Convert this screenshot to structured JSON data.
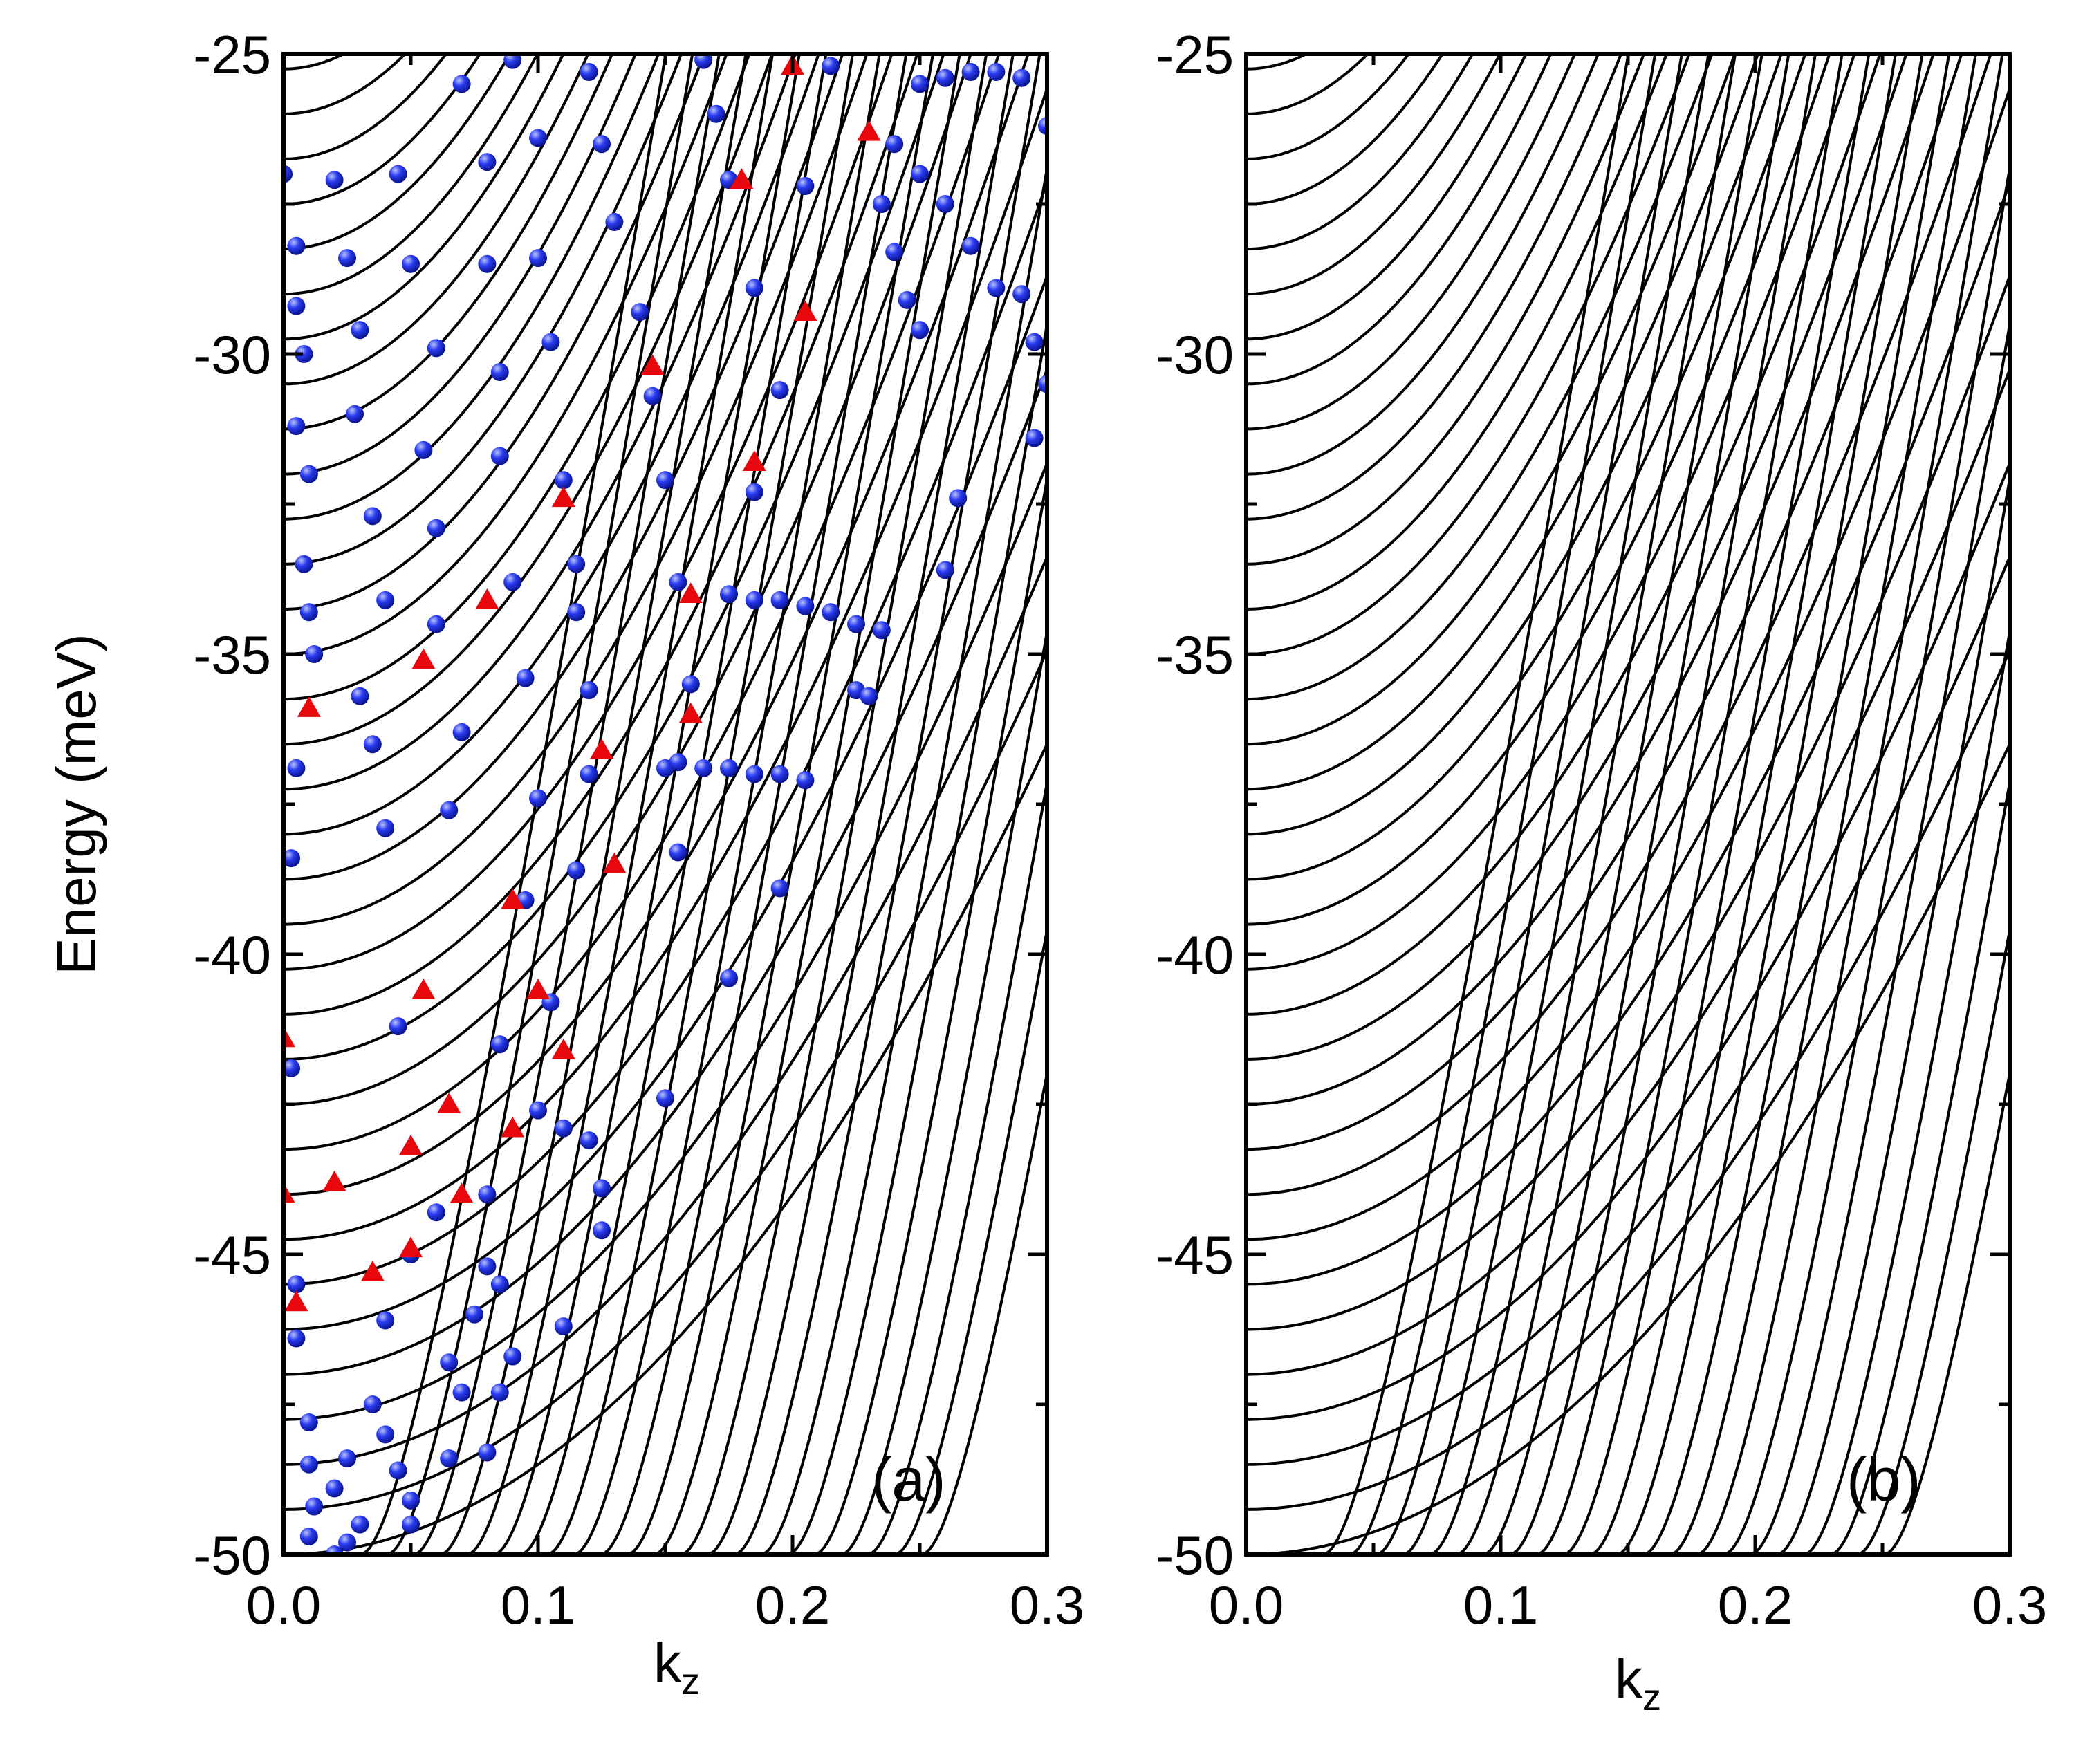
{
  "chart_data": [
    {
      "type": "line",
      "panel_label": "(a)",
      "xlabel": "k",
      "xlabel_sub": "z",
      "ylabel": "Energy (meV)",
      "xlim": [
        0.0,
        0.3
      ],
      "ylim": [
        -50,
        -25
      ],
      "xticks": [
        0.0,
        0.1,
        0.2,
        0.3
      ],
      "xtick_labels": [
        "0.0",
        "0.1",
        "0.2",
        "0.3"
      ],
      "yticks": [
        -25,
        -30,
        -35,
        -40,
        -45,
        -50
      ],
      "ytick_labels": [
        "-25",
        "-30",
        "-35",
        "-40",
        "-45",
        "-50"
      ],
      "legend": "none",
      "grid": false,
      "series": [
        {
          "name": "subbands",
          "description": "dispersion curves E_n(k_z); lowest subband minimum about -50 meV"
        },
        {
          "name": "states (blue spheres)",
          "description": "numerical eigenstates"
        },
        {
          "name": "states (red triangles)",
          "description": "selected eigenstates"
        }
      ],
      "blue_points": [
        [
          0.0,
          -27.0
        ],
        [
          0.005,
          -28.2
        ],
        [
          0.005,
          -29.2
        ],
        [
          0.008,
          -30.0
        ],
        [
          0.005,
          -31.2
        ],
        [
          0.01,
          -32.0
        ],
        [
          0.008,
          -33.5
        ],
        [
          0.01,
          -34.3
        ],
        [
          0.012,
          -35.0
        ],
        [
          0.005,
          -36.9
        ],
        [
          0.003,
          -38.4
        ],
        [
          0.003,
          -41.9
        ],
        [
          0.005,
          -45.5
        ],
        [
          0.005,
          -46.4
        ],
        [
          0.01,
          -47.8
        ],
        [
          0.01,
          -48.5
        ],
        [
          0.012,
          -49.2
        ],
        [
          0.01,
          -49.7
        ],
        [
          0.02,
          -50.0
        ],
        [
          0.025,
          -49.8
        ],
        [
          0.03,
          -49.5
        ],
        [
          0.02,
          -48.9
        ],
        [
          0.025,
          -48.4
        ],
        [
          0.02,
          -27.1
        ],
        [
          0.025,
          -28.4
        ],
        [
          0.03,
          -29.6
        ],
        [
          0.028,
          -31.0
        ],
        [
          0.035,
          -32.7
        ],
        [
          0.04,
          -34.1
        ],
        [
          0.03,
          -35.7
        ],
        [
          0.035,
          -36.5
        ],
        [
          0.04,
          -37.9
        ],
        [
          0.045,
          -41.2
        ],
        [
          0.05,
          -45.0
        ],
        [
          0.04,
          -46.1
        ],
        [
          0.035,
          -47.5
        ],
        [
          0.04,
          -48.0
        ],
        [
          0.045,
          -48.6
        ],
        [
          0.05,
          -49.1
        ],
        [
          0.05,
          -49.5
        ],
        [
          0.045,
          -27.0
        ],
        [
          0.05,
          -28.5
        ],
        [
          0.06,
          -29.9
        ],
        [
          0.055,
          -31.6
        ],
        [
          0.06,
          -32.9
        ],
        [
          0.06,
          -34.5
        ],
        [
          0.07,
          -36.3
        ],
        [
          0.065,
          -37.6
        ],
        [
          0.06,
          -44.3
        ],
        [
          0.065,
          -46.8
        ],
        [
          0.07,
          -47.3
        ],
        [
          0.065,
          -48.4
        ],
        [
          0.07,
          -25.5
        ],
        [
          0.08,
          -26.8
        ],
        [
          0.08,
          -28.5
        ],
        [
          0.085,
          -30.3
        ],
        [
          0.085,
          -31.7
        ],
        [
          0.09,
          -33.8
        ],
        [
          0.095,
          -35.4
        ],
        [
          0.1,
          -37.4
        ],
        [
          0.095,
          -39.1
        ],
        [
          0.085,
          -41.5
        ],
        [
          0.08,
          -44.0
        ],
        [
          0.085,
          -45.5
        ],
        [
          0.09,
          -46.7
        ],
        [
          0.085,
          -47.3
        ],
        [
          0.08,
          -48.3
        ],
        [
          0.075,
          -46.0
        ],
        [
          0.08,
          -45.2
        ],
        [
          0.09,
          -25.1
        ],
        [
          0.1,
          -26.4
        ],
        [
          0.1,
          -28.4
        ],
        [
          0.105,
          -29.8
        ],
        [
          0.11,
          -32.1
        ],
        [
          0.115,
          -33.5
        ],
        [
          0.115,
          -34.3
        ],
        [
          0.12,
          -35.6
        ],
        [
          0.12,
          -37.0
        ],
        [
          0.115,
          -38.6
        ],
        [
          0.105,
          -40.8
        ],
        [
          0.1,
          -42.6
        ],
        [
          0.11,
          -42.9
        ],
        [
          0.12,
          -43.1
        ],
        [
          0.125,
          -43.9
        ],
        [
          0.125,
          -44.6
        ],
        [
          0.11,
          -46.2
        ],
        [
          0.12,
          -25.3
        ],
        [
          0.125,
          -26.5
        ],
        [
          0.13,
          -27.8
        ],
        [
          0.14,
          -29.3
        ],
        [
          0.145,
          -30.7
        ],
        [
          0.15,
          -32.1
        ],
        [
          0.155,
          -33.8
        ],
        [
          0.15,
          -36.9
        ],
        [
          0.155,
          -38.3
        ],
        [
          0.15,
          -42.4
        ],
        [
          0.16,
          -35.5
        ],
        [
          0.155,
          -36.8
        ],
        [
          0.165,
          -36.9
        ],
        [
          0.175,
          -36.9
        ],
        [
          0.185,
          -37.0
        ],
        [
          0.195,
          -37.0
        ],
        [
          0.205,
          -37.1
        ],
        [
          0.175,
          -34.0
        ],
        [
          0.185,
          -34.1
        ],
        [
          0.195,
          -34.1
        ],
        [
          0.205,
          -34.2
        ],
        [
          0.215,
          -34.3
        ],
        [
          0.225,
          -34.5
        ],
        [
          0.235,
          -34.6
        ],
        [
          0.225,
          -35.6
        ],
        [
          0.23,
          -35.7
        ],
        [
          0.195,
          -38.9
        ],
        [
          0.175,
          -40.4
        ],
        [
          0.165,
          -25.1
        ],
        [
          0.17,
          -26.0
        ],
        [
          0.175,
          -27.1
        ],
        [
          0.185,
          -28.9
        ],
        [
          0.195,
          -30.6
        ],
        [
          0.185,
          -32.3
        ],
        [
          0.205,
          -27.2
        ],
        [
          0.215,
          -25.2
        ],
        [
          0.235,
          -27.5
        ],
        [
          0.24,
          -28.3
        ],
        [
          0.245,
          -29.1
        ],
        [
          0.25,
          -29.6
        ],
        [
          0.24,
          -26.5
        ],
        [
          0.25,
          -27.0
        ],
        [
          0.26,
          -27.5
        ],
        [
          0.27,
          -28.2
        ],
        [
          0.28,
          -28.9
        ],
        [
          0.25,
          -25.5
        ],
        [
          0.26,
          -25.4
        ],
        [
          0.27,
          -25.3
        ],
        [
          0.28,
          -25.3
        ],
        [
          0.29,
          -25.4
        ],
        [
          0.3,
          -26.2
        ],
        [
          0.29,
          -29.0
        ],
        [
          0.295,
          -29.8
        ],
        [
          0.3,
          -30.5
        ],
        [
          0.295,
          -31.4
        ],
        [
          0.26,
          -33.6
        ],
        [
          0.265,
          -32.4
        ]
      ],
      "red_points": [
        [
          0.2,
          -25.2
        ],
        [
          0.23,
          -26.3
        ],
        [
          0.18,
          -27.1
        ],
        [
          0.205,
          -29.3
        ],
        [
          0.145,
          -30.2
        ],
        [
          0.185,
          -31.8
        ],
        [
          0.11,
          -32.4
        ],
        [
          0.08,
          -34.1
        ],
        [
          0.055,
          -35.1
        ],
        [
          0.01,
          -35.9
        ],
        [
          0.16,
          -34.0
        ],
        [
          0.16,
          -36.0
        ],
        [
          0.125,
          -36.6
        ],
        [
          0.13,
          -38.5
        ],
        [
          0.09,
          -39.1
        ],
        [
          0.055,
          -40.6
        ],
        [
          0.1,
          -40.6
        ],
        [
          0.11,
          -41.6
        ],
        [
          0.0,
          -41.4
        ],
        [
          0.065,
          -42.5
        ],
        [
          0.05,
          -43.2
        ],
        [
          0.09,
          -42.9
        ],
        [
          0.0,
          -44.0
        ],
        [
          0.02,
          -43.8
        ],
        [
          0.07,
          -44.0
        ],
        [
          0.05,
          -44.9
        ],
        [
          0.035,
          -45.3
        ],
        [
          0.005,
          -45.8
        ]
      ]
    },
    {
      "type": "line",
      "panel_label": "(b)",
      "xlabel": "k",
      "xlabel_sub": "z",
      "ylabel": "",
      "xlim": [
        0.0,
        0.3
      ],
      "ylim": [
        -50,
        -25
      ],
      "xticks": [
        0.0,
        0.1,
        0.2,
        0.3
      ],
      "xtick_labels": [
        "0.0",
        "0.1",
        "0.2",
        "0.3"
      ],
      "yticks": [
        -25,
        -30,
        -35,
        -40,
        -45,
        -50
      ],
      "ytick_labels": [
        "-25",
        "-30",
        "-35",
        "-40",
        "-45",
        "-50"
      ],
      "legend": "none",
      "grid": false,
      "series": [
        {
          "name": "subbands",
          "description": "dispersion curves E_n(k_z); lowest subband minimum about -50 meV"
        }
      ]
    }
  ]
}
